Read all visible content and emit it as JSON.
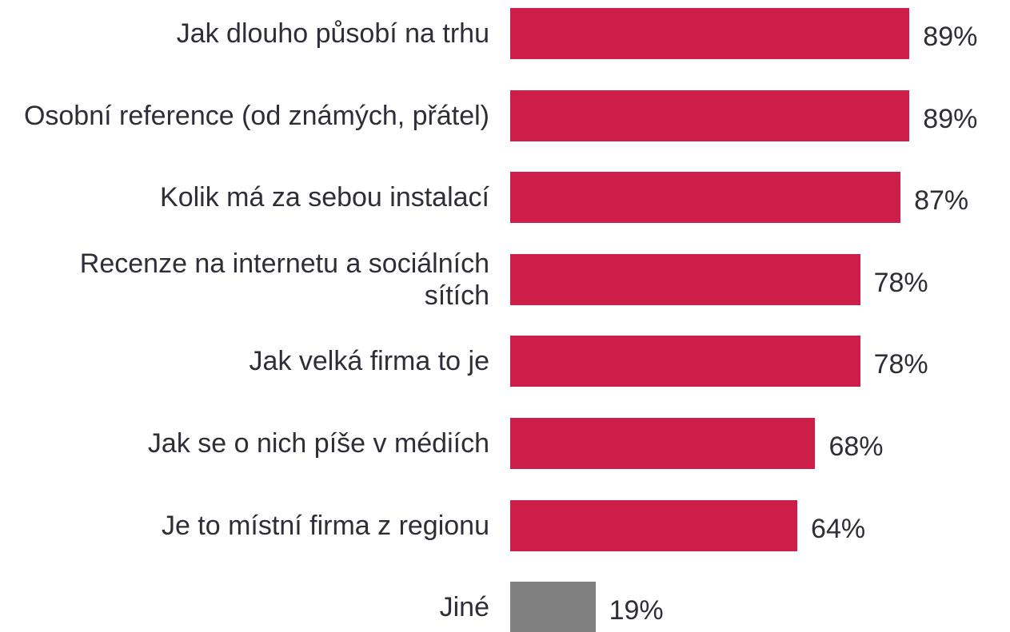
{
  "chart_data": {
    "type": "bar",
    "orientation": "horizontal",
    "categories": [
      "Jak dlouho působí na trhu",
      "Osobní reference (od známých, přátel)",
      "Kolik má za sebou instalací",
      "Recenze na internetu a sociálních sítích",
      "Jak velká firma to je",
      "Jak se o nich píše v médiích",
      "Je to místní firma z regionu",
      "Jiné"
    ],
    "values": [
      89,
      89,
      87,
      78,
      78,
      68,
      64,
      19
    ],
    "value_labels": [
      "89%",
      "89%",
      "87%",
      "78%",
      "78%",
      "68%",
      "64%",
      "19%"
    ],
    "colors": [
      "#cc1e48",
      "#cc1e48",
      "#cc1e48",
      "#cc1e48",
      "#cc1e48",
      "#cc1e48",
      "#cc1e48",
      "#808080"
    ],
    "xlim": [
      0,
      100
    ]
  }
}
